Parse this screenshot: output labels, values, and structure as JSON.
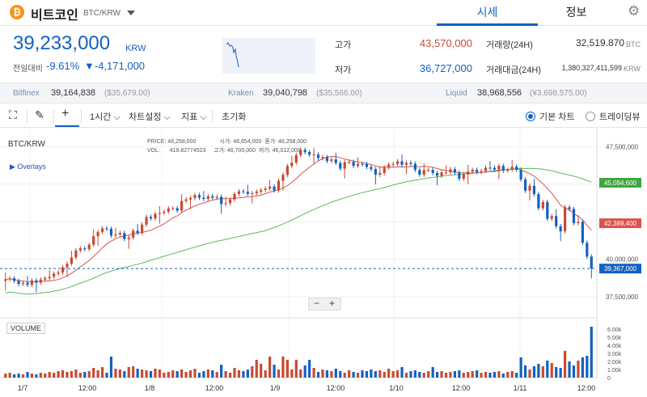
{
  "header": {
    "coin_symbol": "₿",
    "coin_name": "비트코인",
    "pair": "BTC/KRW",
    "tabs": [
      {
        "label": "시세"
      },
      {
        "label": "정보"
      }
    ],
    "settings_icon": "gear-icon"
  },
  "price": {
    "current": "39,233,000",
    "unit": "KRW",
    "change_label": "전일대비",
    "change_pct": "-9.61%",
    "change_abs": "▼-4,171,000"
  },
  "stats": {
    "high_label": "고가",
    "high_value": "43,570,000",
    "low_label": "저가",
    "low_value": "36,727,000",
    "volume_label": "거래량(24H)",
    "volume_value": "32,519.870",
    "volume_unit": "BTC",
    "amount_label": "거래대금(24H)",
    "amount_value": "1,380,327,411,599",
    "amount_unit": "KRW"
  },
  "exchanges": [
    {
      "name": "Bitfinex",
      "price": "39,164,838",
      "sub": "($35,679.00)"
    },
    {
      "name": "Kraken",
      "price": "39,040,798",
      "sub": "($35,566.00)"
    },
    {
      "name": "Liquid",
      "price": "38,968,556",
      "sub": "(¥3,698,575.00)"
    }
  ],
  "toolbar": {
    "interval": "1시간",
    "chart_settings": "차트설정",
    "indicators": "지표",
    "reset": "초기화",
    "basic_chart": "기본 차트",
    "tradingview": "트레이딩뷰"
  },
  "chart": {
    "pair": "BTC/KRW",
    "overlays_label": "Overlays",
    "volume_label": "VOLUME",
    "ohlc": {
      "price_label": "PRICE:",
      "price_value": "46,258,000",
      "vol_label": "VOL:",
      "vol_value": "419.82774523",
      "open_label": "시가:",
      "open_value": "46,654,000",
      "close_label": "종가:",
      "close_value": "46,258,000",
      "high_label": "고가:",
      "high_value": "46,700,000",
      "low_label": "저가:",
      "low_value": "46,012,000"
    },
    "y_ticks": [
      "47,500,000",
      "45,000,000",
      "42,500,000",
      "40,000,000",
      "37,500,000"
    ],
    "tags": {
      "green": "45,094,600",
      "red": "42,389,400",
      "blue": "39,367,000"
    },
    "vol_ticks": [
      "6.00k",
      "5.00k",
      "4.00k",
      "3.00k",
      "2.00k",
      "1.00k",
      "0"
    ],
    "x_ticks": [
      "1/7",
      "12:00",
      "1/8",
      "12:00",
      "1/9",
      "12:00",
      "1/10",
      "12:00",
      "1/11",
      "12:00"
    ],
    "colors": {
      "up": "#c84a31",
      "down": "#1261c4",
      "ma_short": "#d9534f",
      "ma_long": "#5cb85c"
    }
  },
  "chart_data": {
    "type": "candlestick",
    "close": [
      38.65,
      38.72,
      38.55,
      38.35,
      38.42,
      38.29,
      38.58,
      38.43,
      38.64,
      38.73,
      38.82,
      39.03,
      39.11,
      39.45,
      39.69,
      40.11,
      40.58,
      40.72,
      40.67,
      40.96,
      41.52,
      41.81,
      42.05,
      42.02,
      41.57,
      41.64,
      41.74,
      41.34,
      41.44,
      41.89,
      41.75,
      42.3,
      42.81,
      42.71,
      43.02,
      43.08,
      43.16,
      43.38,
      43.39,
      43.23,
      43.88,
      43.98,
      44.08,
      44.27,
      44.09,
      44.01,
      44.19,
      44.09,
      44.15,
      43.67,
      43.73,
      43.97,
      44.34,
      44.52,
      44.49,
      44.35,
      44.4,
      44.5,
      44.61,
      44.7,
      44.83,
      44.58,
      45.22,
      45.62,
      46.2,
      46.43,
      46.93,
      47.28,
      47.13,
      46.96,
      46.97,
      46.73,
      46.8,
      46.54,
      46.64,
      46.41,
      46.03,
      46.47,
      46.48,
      46.21,
      46.34,
      46.33,
      46.14,
      46.0,
      45.63,
      45.74,
      46.1,
      46.3,
      46.34,
      46.52,
      46.29,
      46.42,
      46.35,
      45.94,
      45.63,
      45.94,
      45.95,
      45.74,
      45.56,
      45.78,
      45.78,
      45.99,
      45.77,
      45.35,
      45.64,
      45.83,
      45.95,
      45.8,
      45.88,
      46.09,
      46.08,
      45.97,
      46.21,
      45.9,
      45.95,
      46.16,
      45.96,
      45.31,
      44.56,
      44.89,
      44.33,
      43.39,
      43.8,
      42.69,
      42.87,
      42.19,
      41.85,
      43.46,
      43.34,
      42.4,
      42.48,
      41.09,
      40.17,
      39.37
    ],
    "volume": [
      0.5,
      0.6,
      0.4,
      0.5,
      0.4,
      0.7,
      0.5,
      0.4,
      0.6,
      0.5,
      0.7,
      0.6,
      0.8,
      0.9,
      0.7,
      0.8,
      1.0,
      0.6,
      0.7,
      0.8,
      1.2,
      0.9,
      1.3,
      0.6,
      2.6,
      1.1,
      1.0,
      0.8,
      1.3,
      1.4,
      1.1,
      1.0,
      0.9,
      0.8,
      1.1,
      1.0,
      0.6,
      0.7,
      0.9,
      0.8,
      1.0,
      0.7,
      0.9,
      1.1,
      0.6,
      0.8,
      1.0,
      0.9,
      0.7,
      1.6,
      0.8,
      0.6,
      1.2,
      0.9,
      0.8,
      1.0,
      1.4,
      2.2,
      1.7,
      0.9,
      2.6,
      1.6,
      1.0,
      2.6,
      2.2,
      1.0,
      2.2,
      1.0,
      1.5,
      2.2,
      1.2,
      0.7,
      1.0,
      0.9,
      0.8,
      1.1,
      0.8,
      0.6,
      0.9,
      0.7,
      0.6,
      0.9,
      0.8,
      1.0,
      0.8,
      0.9,
      0.7,
      1.1,
      0.8,
      0.9,
      1.3,
      0.6,
      0.8,
      0.9,
      0.7,
      0.6,
      0.8,
      1.3,
      0.7,
      0.8,
      0.6,
      0.7,
      0.8,
      0.9,
      0.6,
      0.7,
      0.8,
      0.9,
      0.6,
      0.7,
      0.6,
      0.7,
      0.8,
      0.5,
      0.7,
      0.8,
      0.6,
      2.5,
      1.5,
      1.0,
      1.4,
      1.7,
      1.4,
      2.1,
      1.8,
      1.3,
      1.2,
      3.3,
      2.0,
      1.5,
      2.1,
      2.5,
      2.7,
      6.3
    ]
  }
}
